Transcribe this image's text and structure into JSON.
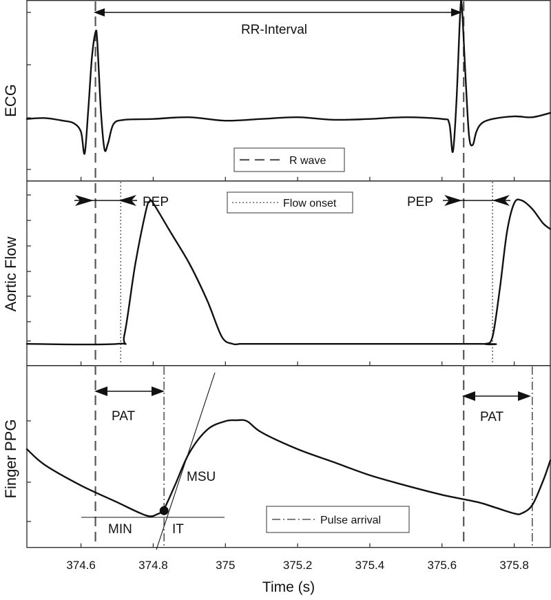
{
  "chart_data": {
    "type": "line",
    "xlabel": "Time (s)",
    "xlim": [
      374.45,
      375.9
    ],
    "xticks": [
      "374.6",
      "374.8",
      "375",
      "375.2",
      "375.4",
      "375.6",
      "375.8"
    ],
    "xtick_values": [
      374.6,
      374.8,
      375.0,
      375.2,
      375.4,
      375.6,
      375.8
    ],
    "grid": false,
    "events": {
      "r_wave": [
        374.64,
        375.66
      ],
      "flow_onset": [
        374.71,
        375.74
      ],
      "pulse_arrival": [
        374.83,
        375.85
      ]
    },
    "panels": [
      {
        "ylabel": "ECG",
        "ylim": [
          -0.6,
          1.2
        ],
        "legend": {
          "label": "R wave",
          "style": "dashed",
          "position": "bottom-center"
        },
        "annotations": {
          "rr_interval": "RR-Interval"
        },
        "series": [
          {
            "x": [
              374.45,
              374.5,
              374.55,
              374.58,
              374.6,
              374.61,
              374.62,
              374.63,
              374.64,
              374.645,
              374.655,
              374.665,
              374.675,
              374.69,
              374.72,
              374.8,
              374.9,
              375.0,
              375.1,
              375.2,
              375.3,
              375.4,
              375.5,
              375.6,
              375.62,
              375.63,
              375.64,
              375.65,
              375.655,
              375.665,
              375.675,
              375.685,
              375.695,
              375.71,
              375.74,
              375.8,
              375.85,
              375.9
            ],
            "y": [
              0.0,
              0.01,
              -0.02,
              -0.05,
              -0.15,
              -0.4,
              0.1,
              0.7,
              1.0,
              0.9,
              0.1,
              -0.35,
              -0.28,
              -0.06,
              -0.01,
              0.0,
              0.02,
              -0.02,
              0.0,
              0.02,
              -0.01,
              0.0,
              0.02,
              0.0,
              -0.05,
              -0.38,
              0.2,
              1.2,
              1.3,
              0.5,
              -0.2,
              -0.3,
              -0.15,
              -0.05,
              0.0,
              0.03,
              0.02,
              0.07
            ]
          }
        ]
      },
      {
        "ylabel": "Aortic Flow",
        "ylim": [
          -0.1,
          1.1
        ],
        "legend": {
          "label": "Flow onset",
          "style": "dotted",
          "position": "top-center"
        },
        "annotations": {
          "pep_left": "PEP",
          "pep_right": "PEP"
        },
        "series": [
          {
            "x": [
              374.45,
              374.7,
              374.72,
              374.75,
              374.78,
              374.79,
              374.8,
              374.85,
              374.9,
              374.95,
              374.99,
              375.02,
              375.04,
              375.05,
              375.1,
              375.7,
              375.72,
              375.74,
              375.76,
              375.78,
              375.8,
              375.82,
              375.85,
              375.88,
              375.9
            ],
            "y": [
              0.0,
              0.0,
              0.06,
              0.55,
              0.93,
              0.99,
              0.98,
              0.77,
              0.56,
              0.3,
              0.05,
              0.0,
              0.0,
              0.0,
              0.0,
              0.0,
              0.0,
              0.05,
              0.38,
              0.78,
              0.98,
              1.0,
              0.94,
              0.84,
              0.8
            ]
          }
        ]
      },
      {
        "ylabel": "Finger PPG",
        "ylim": [
          -0.3,
          1.4
        ],
        "legend": {
          "label": "Pulse arrival",
          "style": "dash-dot",
          "position": "bottom-right"
        },
        "annotations": {
          "pat_left": "PAT",
          "pat_right": "PAT",
          "msu": "MSU",
          "min": "MIN",
          "it": "IT"
        },
        "series": [
          {
            "x": [
              374.45,
              374.5,
              374.6,
              374.7,
              374.76,
              374.79,
              374.81,
              374.83,
              374.86,
              374.9,
              374.95,
              375.0,
              375.03,
              375.06,
              375.1,
              375.2,
              375.3,
              375.4,
              375.5,
              375.6,
              375.7,
              375.75,
              375.8,
              375.82,
              375.85,
              375.88,
              375.9
            ],
            "y": [
              0.72,
              0.55,
              0.33,
              0.15,
              0.04,
              0.0,
              0.02,
              0.08,
              0.33,
              0.68,
              0.93,
              1.02,
              1.03,
              1.02,
              0.9,
              0.72,
              0.58,
              0.44,
              0.33,
              0.23,
              0.15,
              0.09,
              0.03,
              0.03,
              0.12,
              0.38,
              0.6
            ]
          }
        ],
        "markers": [
          {
            "label": "IT",
            "x": 374.83,
            "y": 0.06
          }
        ]
      }
    ]
  }
}
